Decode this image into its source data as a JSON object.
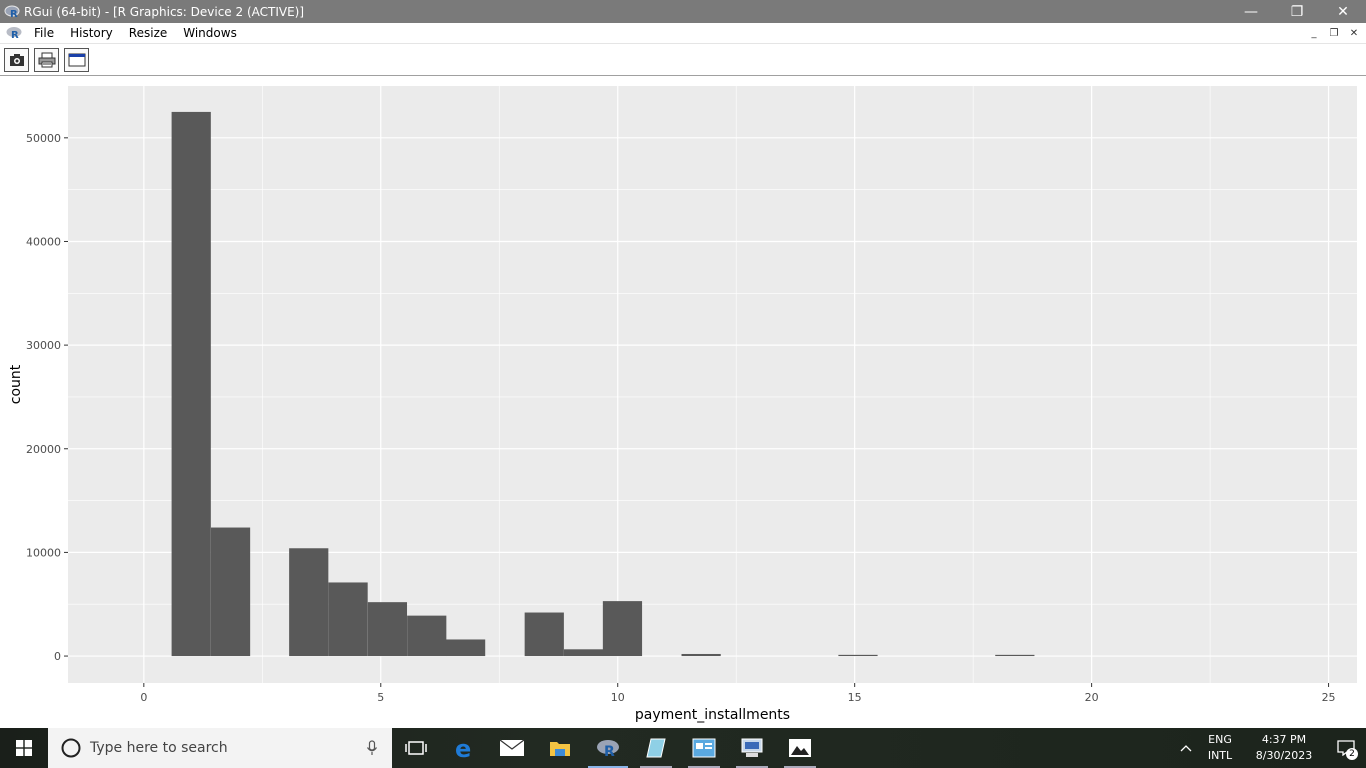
{
  "window": {
    "title": "RGui (64-bit) - [R Graphics: Device 2 (ACTIVE)]",
    "controls": {
      "minimize": "—",
      "maximize": "❐",
      "close": "✕"
    }
  },
  "menu": {
    "items": [
      "File",
      "History",
      "Resize",
      "Windows"
    ],
    "mdi_controls": {
      "minimize": "_",
      "restore": "❐",
      "close": "✕"
    }
  },
  "toolbar": {
    "buttons": [
      {
        "icon": "camera-icon"
      },
      {
        "icon": "printer-icon"
      },
      {
        "icon": "console-window-icon"
      }
    ]
  },
  "chart_data": {
    "type": "bar",
    "xlabel": "payment_installments",
    "ylabel": "count",
    "xlim": [
      -1.6,
      25.6
    ],
    "ylim": [
      -2600,
      55000
    ],
    "x_ticks": [
      0,
      5,
      10,
      15,
      20,
      25
    ],
    "y_ticks": [
      0,
      10000,
      20000,
      30000,
      40000,
      50000
    ],
    "bin_width": 0.8276,
    "bins": [
      {
        "x": 1.0,
        "count": 52500
      },
      {
        "x": 1.83,
        "count": 12400
      },
      {
        "x": 3.48,
        "count": 10400
      },
      {
        "x": 4.31,
        "count": 7100
      },
      {
        "x": 5.14,
        "count": 5200
      },
      {
        "x": 5.97,
        "count": 3900
      },
      {
        "x": 6.79,
        "count": 1600
      },
      {
        "x": 8.45,
        "count": 4200
      },
      {
        "x": 9.28,
        "count": 650
      },
      {
        "x": 10.1,
        "count": 5300
      },
      {
        "x": 11.76,
        "count": 200
      },
      {
        "x": 15.07,
        "count": 60
      },
      {
        "x": 18.38,
        "count": 50
      }
    ],
    "grid": true,
    "colors": {
      "panel": "#ebebeb",
      "grid": "#ffffff",
      "bar": "#595959",
      "axis_text": "#4d4d4d"
    }
  },
  "taskbar": {
    "search_placeholder": "Type here to search",
    "apps": [
      "task-view-icon",
      "edge-icon",
      "mail-icon",
      "file-explorer-icon",
      "r-gui-icon",
      "notepad-icon",
      "control-panel-icon",
      "remote-desktop-icon",
      "photos-icon"
    ],
    "language": "ENG",
    "layout": "INTL",
    "time": "4:37 PM",
    "date": "8/30/2023",
    "notifications": "2"
  }
}
